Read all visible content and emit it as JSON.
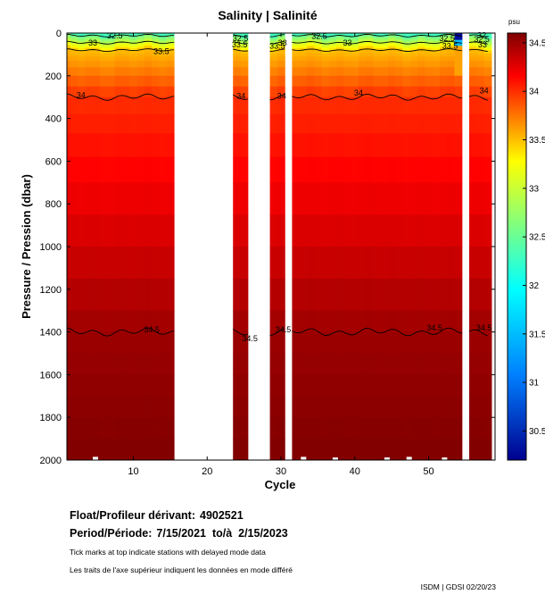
{
  "chart_data": {
    "type": "heatmap",
    "title": "Salinity | Salinité",
    "xlabel": "Cycle",
    "ylabel": "Pressure / Pression (dbar)",
    "xlim": [
      1,
      59
    ],
    "ylim": [
      2000,
      0
    ],
    "xticks": [
      10,
      20,
      30,
      40,
      50
    ],
    "yticks": [
      0,
      200,
      400,
      600,
      800,
      1000,
      1200,
      1400,
      1600,
      1800,
      2000
    ],
    "colorbar": {
      "unit": "psu",
      "range": [
        30.2,
        34.6
      ],
      "ticks": [
        "34.5",
        "34",
        "33.5",
        "33",
        "32.5",
        "32",
        "31.5",
        "31",
        "30.5"
      ],
      "tick_values": [
        34.5,
        34.0,
        33.5,
        33.0,
        32.5,
        32.0,
        31.5,
        31.0,
        30.5
      ]
    },
    "data_gaps_cycles": [
      [
        15.5,
        23.5
      ],
      [
        25.5,
        28.5
      ],
      [
        30.5,
        31.5
      ],
      [
        54.5,
        55.5
      ]
    ],
    "surface_anomaly_cycles": [
      [
        53.5,
        54.5
      ]
    ],
    "contours": [
      {
        "level": "32.5",
        "depth_dbar": 12
      },
      {
        "level": "33",
        "depth_dbar": 45
      },
      {
        "level": "33.5",
        "depth_dbar": 80
      },
      {
        "level": "34",
        "depth_dbar": 300
      },
      {
        "level": "34.5",
        "depth_dbar": 1400
      }
    ],
    "contour_labels": [
      {
        "text": "32.5",
        "cycle": 7.5,
        "p": 12
      },
      {
        "text": "33",
        "cycle": 4.5,
        "p": 45
      },
      {
        "text": "33.5",
        "cycle": 13.8,
        "p": 85
      },
      {
        "text": "34",
        "cycle": 2.9,
        "p": 290
      },
      {
        "text": "34.5",
        "cycle": 12.5,
        "p": 1390
      },
      {
        "text": "32.5",
        "cycle": 24.5,
        "p": 25
      },
      {
        "text": "33.5",
        "cycle": 24.4,
        "p": 55
      },
      {
        "text": "34",
        "cycle": 24.6,
        "p": 295
      },
      {
        "text": "34.5",
        "cycle": 25.8,
        "p": 1430
      },
      {
        "text": "33",
        "cycle": 30.2,
        "p": 45
      },
      {
        "text": "33.5",
        "cycle": 29.5,
        "p": 60
      },
      {
        "text": "34",
        "cycle": 30.1,
        "p": 295
      },
      {
        "text": "34.5",
        "cycle": 30.3,
        "p": 1390
      },
      {
        "text": "32.5",
        "cycle": 35.2,
        "p": 15
      },
      {
        "text": "33",
        "cycle": 39,
        "p": 45
      },
      {
        "text": "34",
        "cycle": 40.5,
        "p": 280
      },
      {
        "text": "34.5",
        "cycle": 50.8,
        "p": 1380
      },
      {
        "text": "32.5",
        "cycle": 52.5,
        "p": 25
      },
      {
        "text": "33.5",
        "cycle": 52.9,
        "p": 60
      },
      {
        "text": "32",
        "cycle": 57.2,
        "p": 10
      },
      {
        "text": "32.5",
        "cycle": 57.2,
        "p": 30
      },
      {
        "text": "33",
        "cycle": 57.3,
        "p": 55
      },
      {
        "text": "34",
        "cycle": 57.5,
        "p": 270
      },
      {
        "text": "34.5",
        "cycle": 57.5,
        "p": 1380
      }
    ]
  },
  "info": {
    "float_label": "Float/Profileur dérivant:",
    "float_value": "4902521",
    "period_label": "Period/Période:",
    "period_value": "7/15/2021  to/à  2/15/2023",
    "note_en": "Tick marks at top indicate stations with delayed mode data",
    "note_fr": "Les traits de l'axe supérieur indiquent les données en mode différé",
    "credit": "ISDM | GDSI 02/20/23"
  }
}
